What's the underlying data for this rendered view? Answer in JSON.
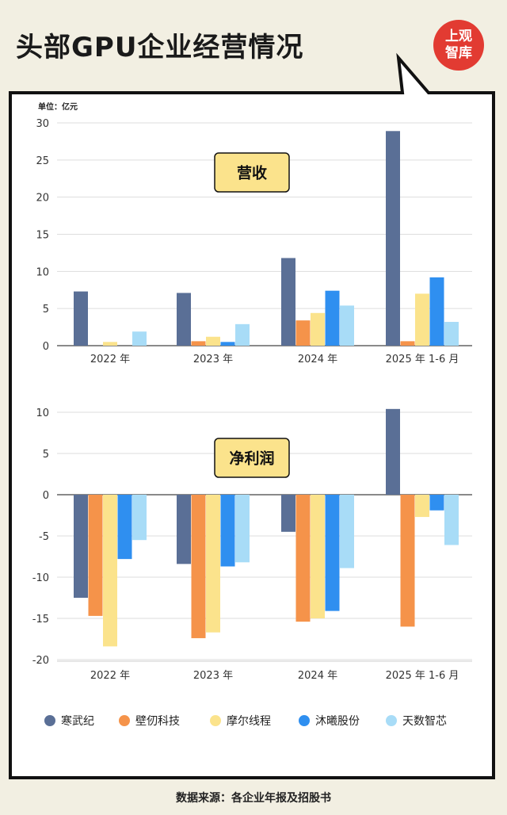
{
  "title": "头部GPU企业经营情况",
  "logo": {
    "line1": "上观",
    "line2": "智库"
  },
  "unit_label": "单位：亿元",
  "source": "数据来源：各企业年报及招股书",
  "colors": {
    "寒武纪": "#5a6f96",
    "壁仞科技": "#f5934a",
    "摩尔线程": "#fbe38c",
    "沐曦股份": "#2f8ff0",
    "天数智芯": "#a8dcf7",
    "label_box": "#fbe38c"
  },
  "chart_data": [
    {
      "type": "bar",
      "title": "营收",
      "categories": [
        "2022 年",
        "2023 年",
        "2024 年",
        "2025 年 1-6 月"
      ],
      "ylim": [
        0,
        30
      ],
      "yticks": [
        0,
        5,
        10,
        15,
        20,
        25,
        30
      ],
      "series": [
        {
          "name": "寒武纪",
          "values": [
            7.3,
            7.1,
            11.8,
            28.9
          ]
        },
        {
          "name": "壁仞科技",
          "values": [
            0,
            0.6,
            3.4,
            0.6
          ]
        },
        {
          "name": "摩尔线程",
          "values": [
            0.5,
            1.2,
            4.4,
            7.0
          ]
        },
        {
          "name": "沐曦股份",
          "values": [
            0,
            0.5,
            7.4,
            9.2
          ]
        },
        {
          "name": "天数智芯",
          "values": [
            1.9,
            2.9,
            5.4,
            3.2
          ]
        }
      ]
    },
    {
      "type": "bar",
      "title": "净利润",
      "categories": [
        "2022 年",
        "2023 年",
        "2024 年",
        "2025 年 1-6 月"
      ],
      "ylim": [
        -20,
        10
      ],
      "yticks": [
        10,
        5,
        0,
        -5,
        -10,
        -15,
        -20
      ],
      "series": [
        {
          "name": "寒武纪",
          "values": [
            -12.5,
            -8.4,
            -4.5,
            10.4
          ]
        },
        {
          "name": "壁仞科技",
          "values": [
            -14.7,
            -17.4,
            -15.4,
            -16.0
          ]
        },
        {
          "name": "摩尔线程",
          "values": [
            -18.4,
            -16.7,
            -15.0,
            -2.7
          ]
        },
        {
          "name": "沐曦股份",
          "values": [
            -7.8,
            -8.7,
            -14.1,
            -1.9
          ]
        },
        {
          "name": "天数智芯",
          "values": [
            -5.5,
            -8.2,
            -8.9,
            -6.1
          ]
        }
      ]
    }
  ]
}
